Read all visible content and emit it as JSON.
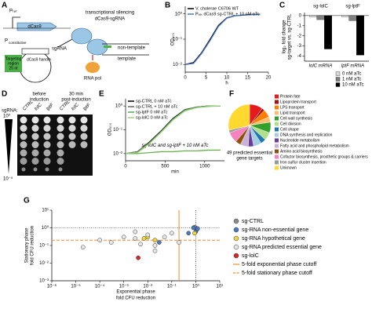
{
  "letters": [
    "A",
    "B",
    "C",
    "D",
    "E",
    "F",
    "G"
  ],
  "panel_a": {
    "promoter": "Pₜₑₜ",
    "gene": "dCas9",
    "p_const": "P",
    "p_const_sub": "constitutive",
    "sgrna": "sgRNA",
    "targeting": [
      "Targeting",
      "region",
      "25 nt"
    ],
    "handle": "dCas9 handle",
    "silencing": [
      "transcriptional silencing",
      "dCas9-sgRNA"
    ],
    "non_template": "non-template",
    "template": "template",
    "rnap": "RNA pol"
  },
  "panel_d": {
    "sgrna": "sgRNA:",
    "before": [
      "before",
      "induction"
    ],
    "after": [
      "30 min",
      "post-induction"
    ],
    "columns": [
      "CTRL",
      "lolC",
      "lptF",
      "CTRL",
      "lolC",
      "lptF"
    ],
    "dilution_top": "10⁰",
    "dilution_bottom": "10⁻⁵"
  },
  "chart_data": [
    {
      "type": "line",
      "x_label": "h",
      "y_label": "OD₆₀₀",
      "x": [
        0,
        2,
        4,
        6,
        8,
        10,
        12,
        14,
        16,
        18
      ],
      "xlim": [
        0,
        20
      ],
      "xticks": [
        0,
        5,
        10,
        15,
        20
      ],
      "y_scale": "log",
      "ylim": [
        0.005,
        2
      ],
      "yticks": [
        {
          "value": 0.01,
          "label": "10⁻²"
        },
        {
          "value": 0.1,
          "label": "10⁻¹"
        },
        {
          "value": 1,
          "label": "10⁰"
        }
      ],
      "legend": "upper left",
      "series": [
        {
          "name": "V. cholerae C6706 WT",
          "color": "#000000",
          "values": [
            0.01,
            0.012,
            0.03,
            0.1,
            0.35,
            0.7,
            0.85,
            0.9,
            0.95,
            0.95
          ]
        },
        {
          "name": "Pₜₑₜ dCas9 sg-CTRL + 10 nM aTc",
          "color": "#4a78c2",
          "values": [
            0.01,
            0.011,
            0.028,
            0.09,
            0.32,
            0.68,
            0.84,
            0.9,
            0.94,
            0.95
          ]
        }
      ]
    },
    {
      "type": "bar",
      "y_label": [
        "log₂ fold change",
        "sg-target vs. sg-CTRL"
      ],
      "group_titles": [
        "sg-lolC",
        "sg-lptF"
      ],
      "categories": [
        "lolC mRNA",
        "lptF mRNA"
      ],
      "ylim": [
        -4.5,
        0.3
      ],
      "yticks": [
        0,
        -1,
        -2,
        -3,
        -4
      ],
      "legend": "lower right",
      "series": [
        {
          "name": "0 nM aTc",
          "color": "#d9d9d9",
          "values": [
            -0.1,
            -0.1
          ]
        },
        {
          "name": "1 nM aTc",
          "color": "#7f7f7f",
          "values": [
            -0.4,
            -0.5
          ]
        },
        {
          "name": "10 nM aTc",
          "color": "#000000",
          "values": [
            -3.3,
            -3.9
          ]
        }
      ]
    },
    {
      "type": "line",
      "x_label": "min",
      "y_label": "OD₆₀₀",
      "x": [
        0,
        150,
        300,
        450,
        600,
        750,
        900,
        1050,
        1200
      ],
      "xlim": [
        0,
        1250
      ],
      "xticks": [
        0,
        500,
        1000
      ],
      "y_scale": "log",
      "ylim": [
        0.005,
        2
      ],
      "yticks": [
        {
          "value": 0.01,
          "label": "10⁻²"
        },
        {
          "value": 0.1,
          "label": "10⁻¹"
        },
        {
          "value": 1,
          "label": "10⁰"
        }
      ],
      "legend": "upper left",
      "series": [
        {
          "name": "sg-CTRL 0 nM aTc",
          "color": "#000000",
          "values": [
            0.01,
            0.012,
            0.03,
            0.09,
            0.3,
            0.7,
            0.9,
            1,
            1
          ]
        },
        {
          "name": "sg-CTRL + 10 nM aTc",
          "color": "#666666",
          "values": [
            0.01,
            0.012,
            0.028,
            0.085,
            0.28,
            0.68,
            0.9,
            1,
            1
          ]
        },
        {
          "name": "sg-lptF 0 nM aTc",
          "color": "#4daf4a",
          "values": [
            0.01,
            0.011,
            0.027,
            0.08,
            0.27,
            0.65,
            0.88,
            0.98,
            1
          ]
        },
        {
          "name": "sg-lolC 0 nM aTc",
          "color": "#9ad17a",
          "values": [
            0.01,
            0.011,
            0.026,
            0.08,
            0.26,
            0.62,
            0.85,
            0.95,
            1
          ]
        }
      ],
      "annotated_series": {
        "name": "sg-lolC and sg-lptF + 10 nM aTc",
        "color": "#6ab04c",
        "values": [
          0.01,
          0.01,
          0.011,
          0.012,
          0.012,
          0.013,
          0.013,
          0.014,
          0.014
        ]
      }
    },
    {
      "type": "pie",
      "caption": [
        "49 predicted essential",
        "gene targets"
      ],
      "categories": [
        "Protein fate",
        "Lipoprotein transport",
        "LPS transport",
        "Lipid transport",
        "Cell wall synthesis",
        "Cell division",
        "Cell shape",
        "DNA synthesis and replication",
        "Nucleotide metabolism",
        "Fatty acid and phospholipid metabolism",
        "Amino acid biosynthesis",
        "Cofactor biosynthesis, prosthetic groups & carriers",
        "Iron sulfur cluster insertion",
        "Unknown"
      ],
      "values": [
        5,
        1,
        3,
        2,
        4,
        3,
        2,
        3,
        2,
        3,
        2,
        4,
        1,
        14
      ],
      "colors": [
        "#e41a1c",
        "#a50f15",
        "#ff7f00",
        "#fdbf6f",
        "#33a02c",
        "#b2df8a",
        "#1f78b4",
        "#a6cee3",
        "#6a3d9a",
        "#cab2d6",
        "#8c510a",
        "#f781bf",
        "#999999",
        "#ffd92f"
      ]
    },
    {
      "type": "scatter",
      "x_label": [
        "Exponential phase",
        "fold CFU reduction"
      ],
      "y_label": [
        "Stationary phase",
        "fold CFU reduction"
      ],
      "x_scale": "log",
      "y_scale": "log",
      "xlim": [
        1e-06,
        10
      ],
      "xticks": [
        {
          "value": 1e-06,
          "label": "10⁻⁶"
        },
        {
          "value": 1e-05,
          "label": "10⁻⁵"
        },
        {
          "value": 0.0001,
          "label": "10⁻⁴"
        },
        {
          "value": 0.001,
          "label": "10⁻³"
        },
        {
          "value": 0.01,
          "label": "10⁻²"
        },
        {
          "value": 0.1,
          "label": "10⁻¹"
        },
        {
          "value": 1,
          "label": "10⁰"
        },
        {
          "value": 10,
          "label": "10¹"
        }
      ],
      "ylim": [
        0.001,
        10
      ],
      "yticks": [
        {
          "value": 0.001,
          "label": "10⁻³"
        },
        {
          "value": 0.01,
          "label": "10⁻²"
        },
        {
          "value": 0.1,
          "label": "10⁻¹"
        },
        {
          "value": 1,
          "label": "10⁰"
        },
        {
          "value": 10,
          "label": "10¹"
        }
      ],
      "guides": [
        {
          "axis": "x",
          "value": 1
        },
        {
          "axis": "y",
          "value": 1
        }
      ],
      "reference_lines": [
        {
          "name": "5-fold exponential phase cutoff",
          "axis": "x",
          "value": 0.2,
          "color": "#f28c28",
          "style": "solid"
        },
        {
          "name": "5-fold stationary phase cutoff",
          "axis": "y",
          "value": 0.2,
          "color": "#f28c28",
          "style": "dashed"
        }
      ],
      "legend": "right",
      "series": [
        {
          "name": "sg-CTRL",
          "color": "#8c8c8c",
          "x": [
            1,
            0.9,
            1.1
          ],
          "y": [
            1,
            1.1,
            0.8
          ]
        },
        {
          "name": "sg-RNA non-essential gene",
          "color": "#4a78c2",
          "x": [
            1,
            0.8,
            1.2,
            0.03,
            0.5
          ],
          "y": [
            0.6,
            1,
            0.9,
            0.15,
            0.5
          ]
        },
        {
          "name": "sg-RNA hypothetical gene",
          "color": "#f2d43d",
          "x": [
            0.01,
            0.02,
            0.9,
            0.007
          ],
          "y": [
            0.3,
            0.2,
            0.5,
            0.25
          ]
        },
        {
          "name": "sg-RNA predicted essential gene",
          "color": "#e6e6e6",
          "x": [
            2e-05,
            0.0001,
            0.0003,
            0.001,
            0.003,
            0.005,
            0.01,
            0.02,
            0.05,
            0.1,
            0.2,
            0.02,
            0.003
          ],
          "y": [
            0.08,
            0.2,
            0.15,
            0.3,
            0.25,
            0.12,
            0.4,
            0.1,
            0.3,
            0.5,
            0.15,
            0.05,
            0.6
          ]
        },
        {
          "name": "sg-lolC",
          "color": "#d62728",
          "x": [
            0.004
          ],
          "y": [
            0.02
          ]
        }
      ]
    }
  ]
}
